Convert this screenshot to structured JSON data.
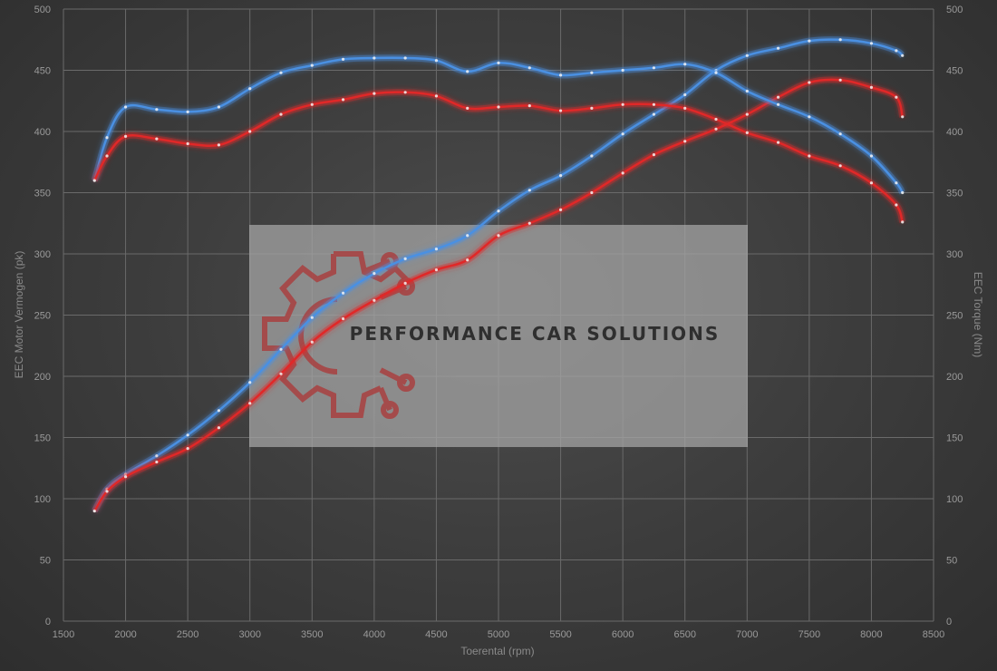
{
  "chart_data": {
    "type": "line",
    "xlabel": "Toerental (rpm)",
    "ylabel_left": "EEC Motor Vermogen (pk)",
    "ylabel_right": "EEC Torque (Nm)",
    "xlim": [
      1500,
      8500
    ],
    "ylim_left": [
      0,
      500
    ],
    "ylim_right": [
      0,
      500
    ],
    "x_ticks": [
      1500,
      2000,
      2500,
      3000,
      3500,
      4000,
      4500,
      5000,
      5500,
      6000,
      6500,
      7000,
      7500,
      8000,
      8500
    ],
    "y_ticks": [
      0,
      50,
      100,
      150,
      200,
      250,
      300,
      350,
      400,
      450,
      500
    ],
    "grid": true,
    "series": [
      {
        "axis": "left",
        "color": "#4a90e2",
        "points": [
          [
            1750,
            90
          ],
          [
            1850,
            108
          ],
          [
            2000,
            120
          ],
          [
            2250,
            135
          ],
          [
            2500,
            152
          ],
          [
            2750,
            172
          ],
          [
            3000,
            195
          ],
          [
            3250,
            222
          ],
          [
            3500,
            248
          ],
          [
            3750,
            268
          ],
          [
            4000,
            284
          ],
          [
            4250,
            296
          ],
          [
            4500,
            304
          ],
          [
            4750,
            315
          ],
          [
            5000,
            335
          ],
          [
            5250,
            352
          ],
          [
            5500,
            364
          ],
          [
            5750,
            380
          ],
          [
            6000,
            398
          ],
          [
            6250,
            414
          ],
          [
            6500,
            430
          ],
          [
            6750,
            450
          ],
          [
            7000,
            462
          ],
          [
            7250,
            468
          ],
          [
            7500,
            474
          ],
          [
            7750,
            475
          ],
          [
            8000,
            472
          ],
          [
            8200,
            466
          ],
          [
            8250,
            462
          ]
        ]
      },
      {
        "axis": "left",
        "color": "#e02828",
        "points": [
          [
            1750,
            90
          ],
          [
            1850,
            106
          ],
          [
            2000,
            118
          ],
          [
            2250,
            130
          ],
          [
            2500,
            141
          ],
          [
            2750,
            158
          ],
          [
            3000,
            178
          ],
          [
            3250,
            202
          ],
          [
            3500,
            228
          ],
          [
            3750,
            247
          ],
          [
            4000,
            262
          ],
          [
            4250,
            276
          ],
          [
            4500,
            287
          ],
          [
            4750,
            295
          ],
          [
            5000,
            315
          ],
          [
            5250,
            325
          ],
          [
            5500,
            336
          ],
          [
            5750,
            350
          ],
          [
            6000,
            366
          ],
          [
            6250,
            381
          ],
          [
            6500,
            392
          ],
          [
            6750,
            402
          ],
          [
            7000,
            414
          ],
          [
            7250,
            428
          ],
          [
            7500,
            440
          ],
          [
            7750,
            442
          ],
          [
            8000,
            436
          ],
          [
            8200,
            428
          ],
          [
            8250,
            412
          ]
        ]
      },
      {
        "axis": "right",
        "color": "#4a90e2",
        "points": [
          [
            1750,
            360
          ],
          [
            1850,
            395
          ],
          [
            2000,
            420
          ],
          [
            2250,
            418
          ],
          [
            2500,
            416
          ],
          [
            2750,
            420
          ],
          [
            3000,
            435
          ],
          [
            3250,
            448
          ],
          [
            3500,
            454
          ],
          [
            3750,
            459
          ],
          [
            4000,
            460
          ],
          [
            4250,
            460
          ],
          [
            4500,
            458
          ],
          [
            4750,
            449
          ],
          [
            5000,
            456
          ],
          [
            5250,
            452
          ],
          [
            5500,
            446
          ],
          [
            5750,
            448
          ],
          [
            6000,
            450
          ],
          [
            6250,
            452
          ],
          [
            6500,
            455
          ],
          [
            6750,
            448
          ],
          [
            7000,
            433
          ],
          [
            7250,
            422
          ],
          [
            7500,
            412
          ],
          [
            7750,
            398
          ],
          [
            8000,
            380
          ],
          [
            8200,
            358
          ],
          [
            8250,
            350
          ]
        ]
      },
      {
        "axis": "right",
        "color": "#e02828",
        "points": [
          [
            1750,
            360
          ],
          [
            1850,
            380
          ],
          [
            2000,
            396
          ],
          [
            2250,
            394
          ],
          [
            2500,
            390
          ],
          [
            2750,
            389
          ],
          [
            3000,
            400
          ],
          [
            3250,
            414
          ],
          [
            3500,
            422
          ],
          [
            3750,
            426
          ],
          [
            4000,
            431
          ],
          [
            4250,
            432
          ],
          [
            4500,
            429
          ],
          [
            4750,
            419
          ],
          [
            5000,
            420
          ],
          [
            5250,
            421
          ],
          [
            5500,
            417
          ],
          [
            5750,
            419
          ],
          [
            6000,
            422
          ],
          [
            6250,
            422
          ],
          [
            6500,
            419
          ],
          [
            6750,
            410
          ],
          [
            7000,
            399
          ],
          [
            7250,
            391
          ],
          [
            7500,
            380
          ],
          [
            7750,
            372
          ],
          [
            8000,
            358
          ],
          [
            8200,
            340
          ],
          [
            8250,
            326
          ]
        ]
      }
    ]
  },
  "watermark": {
    "text": "PERFORMANCE CAR SOLUTIONS",
    "logo_color": "#a94040"
  }
}
